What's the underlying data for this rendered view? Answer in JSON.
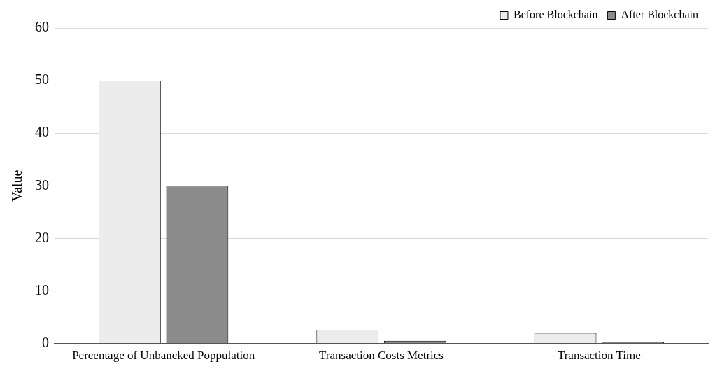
{
  "chart_data": {
    "type": "bar",
    "ylabel": "Value",
    "categories": [
      "Percentage of Unbancked Poppulation",
      "Transaction Costs Metrics",
      "Transaction Time"
    ],
    "series": [
      {
        "name": "Before Blockchain",
        "color": "#ececec",
        "values": [
          50,
          2.6,
          2.0
        ]
      },
      {
        "name": "After Blockchain",
        "color": "#8c8c8c",
        "values": [
          30,
          0.5,
          0.2
        ]
      }
    ],
    "ylim": [
      0,
      60
    ],
    "yticks": [
      0,
      10,
      20,
      30,
      40,
      50,
      60
    ],
    "grid": "y",
    "legend": "top right"
  }
}
